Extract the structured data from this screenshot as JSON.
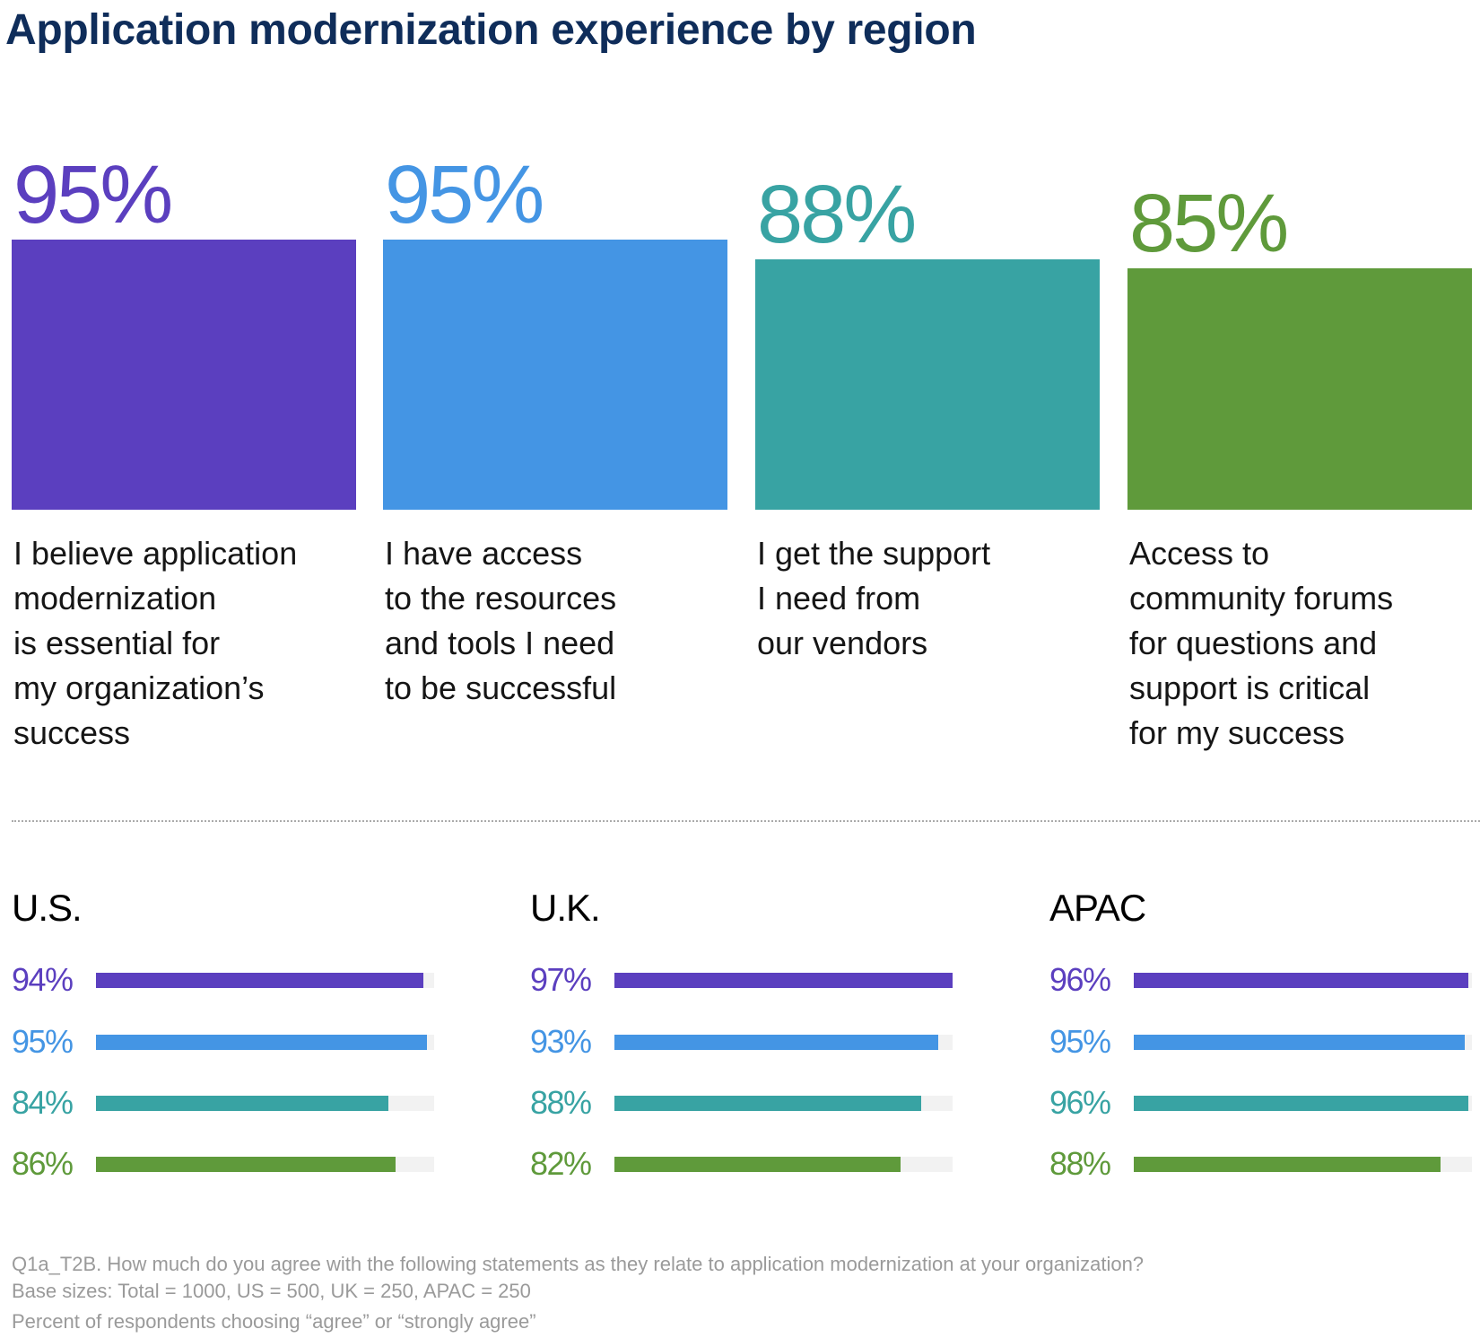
{
  "title": "Application modernization experience by region",
  "colors": [
    "#5b3fbf",
    "#4495e4",
    "#38a3a3",
    "#5f9a3b"
  ],
  "chart_data": [
    {
      "type": "bar",
      "categories": [
        "I believe application modernization is essential for my organization’s success",
        "I have access to the resources and tools I need to be successful",
        "I get the support I need from our vendors",
        "Access to community forums for questions and support is critical for my success"
      ],
      "values": [
        95,
        95,
        88,
        85
      ],
      "value_labels": [
        "95%",
        "95%",
        "88%",
        "85%"
      ],
      "label_lines": [
        [
          "I believe application",
          "modernization",
          "is essential for",
          "my organization’s",
          "success"
        ],
        [
          "I have access",
          "to the resources",
          "and tools I need",
          "to be successful"
        ],
        [
          "I get the support",
          "I need from",
          "our vendors"
        ],
        [
          "Access to",
          "community forums",
          "for questions and",
          "support is critical",
          "for my success"
        ]
      ]
    },
    {
      "type": "bar",
      "orientation": "horizontal",
      "regions": [
        {
          "name": "U.S.",
          "values": [
            94,
            95,
            84,
            86
          ],
          "labels": [
            "94%",
            "95%",
            "84%",
            "86%"
          ]
        },
        {
          "name": "U.K.",
          "values": [
            97,
            93,
            88,
            82
          ],
          "labels": [
            "97%",
            "93%",
            "88%",
            "82%"
          ]
        },
        {
          "name": "APAC",
          "values": [
            96,
            95,
            96,
            88
          ],
          "labels": [
            "96%",
            "95%",
            "96%",
            "88%"
          ]
        }
      ]
    }
  ],
  "footer": {
    "question": "Q1a_T2B. How much do you agree with the following statements as they relate to application modernization at your organization?",
    "base": "Base sizes: Total = 1000, US = 500, UK = 250, APAC = 250",
    "note": "Percent of respondents choosing “agree” or “strongly agree”"
  }
}
